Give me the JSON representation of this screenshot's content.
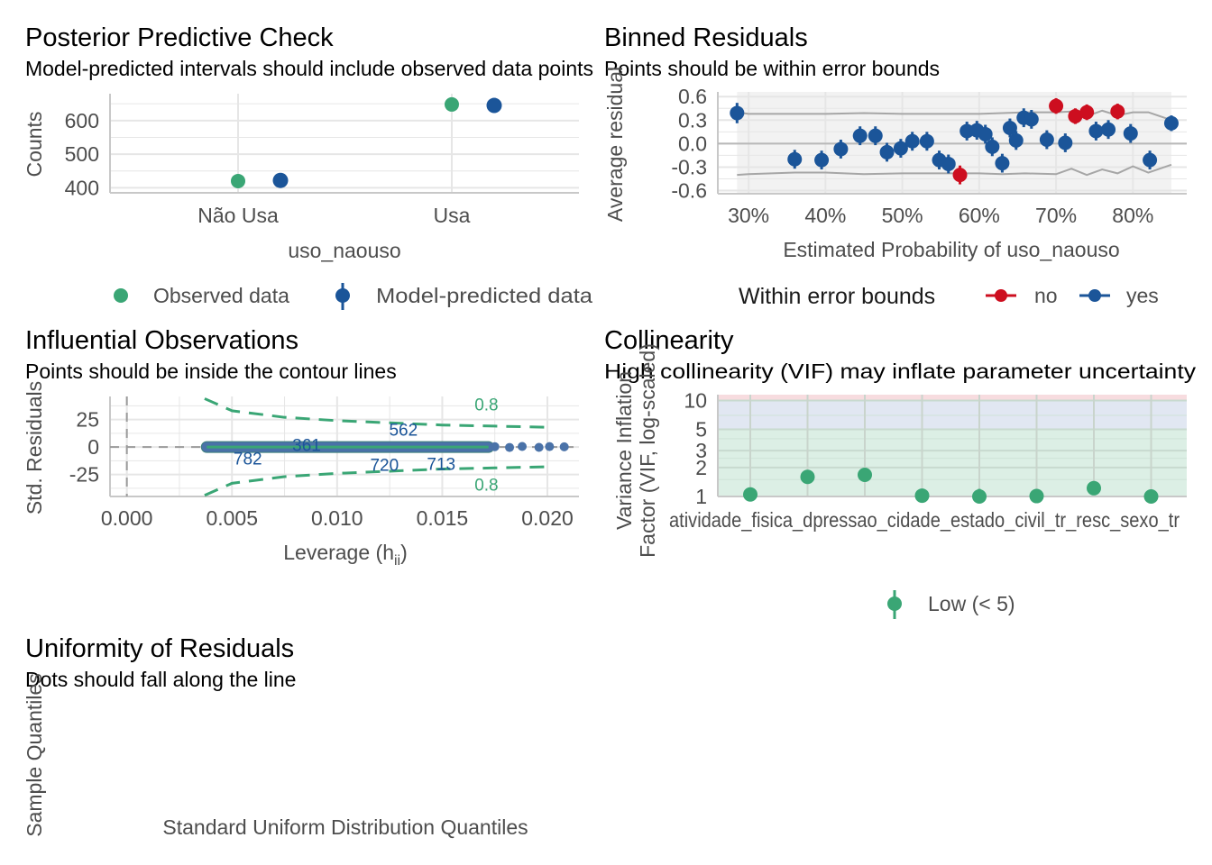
{
  "panels": {
    "ppc": {
      "title": "Posterior Predictive Check",
      "subtitle": "Model-predicted intervals should include observed data points",
      "xlabel": "uso_naouso",
      "ylabel": "Counts",
      "legend": {
        "observed": "Observed data",
        "predicted": "Model-predicted data"
      }
    },
    "binned": {
      "title": "Binned Residuals",
      "subtitle": "Points should be within error bounds",
      "xlabel": "Estimated Probability of uso_naouso",
      "ylabel": "Average residual",
      "legend": {
        "title": "Within error bounds",
        "no": "no",
        "yes": "yes"
      }
    },
    "influential": {
      "title": "Influential Observations",
      "subtitle": "Points should be inside the contour lines",
      "xlabel": "Leverage (h",
      "xlabel_sub": "ii",
      "xlabel_close": ")",
      "ylabel": "Std. Residuals",
      "contour_label": "0.8",
      "point_labels": [
        "562",
        "361",
        "782",
        "720",
        "713"
      ]
    },
    "collinearity": {
      "title": "Collinearity",
      "subtitle": "High collinearity (VIF) may inflate parameter uncertainty",
      "ylabel_line1": "Variance Inflation",
      "ylabel_line2": "Factor (VIF, log-scaled)",
      "xtick_text": "atividade_fisica_dpressao_cidade_estado_civil_tr_resc_sexo_tr",
      "legend": {
        "low": "Low (< 5)"
      }
    },
    "uniformity": {
      "title": "Uniformity of Residuals",
      "subtitle": "Dots should fall along the line",
      "xlabel": "Standard Uniform Distribution Quantiles",
      "ylabel": "Sample Quantiles"
    }
  },
  "colors": {
    "green": "#3aa675",
    "blue": "#1b5599",
    "red": "#cd0e1f",
    "grid": "#e6e6e6",
    "axis": "#c8c8c8"
  },
  "chart_data": [
    {
      "id": "ppc",
      "type": "scatter",
      "categories": [
        "Não Usa",
        "Usa"
      ],
      "ylim": [
        385,
        680
      ],
      "yticks": [
        400,
        500,
        600
      ],
      "series": [
        {
          "name": "Observed data",
          "values": [
            420,
            648
          ]
        },
        {
          "name": "Model-predicted data",
          "values": [
            422,
            645
          ],
          "lower": [
            407,
            632
          ],
          "upper": [
            437,
            660
          ]
        }
      ]
    },
    {
      "id": "binned",
      "type": "scatter",
      "xlim": [
        0.26,
        0.87
      ],
      "ylim": [
        -0.64,
        0.66
      ],
      "xticks": [
        0.3,
        0.4,
        0.5,
        0.6,
        0.7,
        0.8
      ],
      "xtick_labels": [
        "30%",
        "40%",
        "50%",
        "60%",
        "70%",
        "80%"
      ],
      "yticks": [
        -0.6,
        -0.3,
        0.0,
        0.3,
        0.6
      ],
      "ytick_labels": [
        "-0.6",
        "-0.3",
        "0.0",
        "0.3",
        "0.6"
      ],
      "points": [
        {
          "x": 0.285,
          "y": 0.39,
          "e": 0.13,
          "in": true
        },
        {
          "x": 0.36,
          "y": -0.2,
          "e": 0.12,
          "in": true
        },
        {
          "x": 0.395,
          "y": -0.21,
          "e": 0.12,
          "in": true
        },
        {
          "x": 0.42,
          "y": -0.07,
          "e": 0.12,
          "in": true
        },
        {
          "x": 0.445,
          "y": 0.1,
          "e": 0.12,
          "in": true
        },
        {
          "x": 0.465,
          "y": 0.1,
          "e": 0.12,
          "in": true
        },
        {
          "x": 0.48,
          "y": -0.11,
          "e": 0.12,
          "in": true
        },
        {
          "x": 0.498,
          "y": -0.06,
          "e": 0.12,
          "in": true
        },
        {
          "x": 0.513,
          "y": 0.03,
          "e": 0.12,
          "in": true
        },
        {
          "x": 0.532,
          "y": 0.03,
          "e": 0.12,
          "in": true
        },
        {
          "x": 0.548,
          "y": -0.21,
          "e": 0.12,
          "in": true
        },
        {
          "x": 0.56,
          "y": -0.26,
          "e": 0.12,
          "in": true
        },
        {
          "x": 0.575,
          "y": -0.4,
          "e": 0.12,
          "in": false
        },
        {
          "x": 0.584,
          "y": 0.16,
          "e": 0.12,
          "in": true
        },
        {
          "x": 0.597,
          "y": 0.17,
          "e": 0.12,
          "in": true
        },
        {
          "x": 0.608,
          "y": 0.12,
          "e": 0.12,
          "in": true
        },
        {
          "x": 0.617,
          "y": -0.04,
          "e": 0.12,
          "in": true
        },
        {
          "x": 0.63,
          "y": -0.25,
          "e": 0.12,
          "in": true
        },
        {
          "x": 0.64,
          "y": 0.2,
          "e": 0.12,
          "in": true
        },
        {
          "x": 0.648,
          "y": 0.04,
          "e": 0.12,
          "in": true
        },
        {
          "x": 0.658,
          "y": 0.33,
          "e": 0.12,
          "in": true
        },
        {
          "x": 0.668,
          "y": 0.31,
          "e": 0.12,
          "in": true
        },
        {
          "x": 0.688,
          "y": 0.05,
          "e": 0.12,
          "in": true
        },
        {
          "x": 0.7,
          "y": 0.48,
          "e": 0.1,
          "in": false
        },
        {
          "x": 0.712,
          "y": 0.01,
          "e": 0.12,
          "in": true
        },
        {
          "x": 0.725,
          "y": 0.35,
          "e": 0.1,
          "in": false
        },
        {
          "x": 0.74,
          "y": 0.4,
          "e": 0.1,
          "in": false
        },
        {
          "x": 0.752,
          "y": 0.16,
          "e": 0.12,
          "in": true
        },
        {
          "x": 0.768,
          "y": 0.18,
          "e": 0.12,
          "in": true
        },
        {
          "x": 0.78,
          "y": 0.41,
          "e": 0.1,
          "in": false
        },
        {
          "x": 0.797,
          "y": 0.13,
          "e": 0.12,
          "in": true
        },
        {
          "x": 0.822,
          "y": -0.21,
          "e": 0.12,
          "in": true
        },
        {
          "x": 0.85,
          "y": 0.26,
          "e": 0.1,
          "in": true
        }
      ],
      "bound_x": [
        0.285,
        0.3,
        0.36,
        0.4,
        0.45,
        0.5,
        0.55,
        0.6,
        0.63,
        0.66,
        0.7,
        0.72,
        0.74,
        0.76,
        0.78,
        0.8,
        0.82,
        0.85
      ],
      "bound_upper": [
        0.4,
        0.38,
        0.38,
        0.38,
        0.39,
        0.38,
        0.38,
        0.38,
        0.39,
        0.4,
        0.4,
        0.41,
        0.35,
        0.42,
        0.36,
        0.4,
        0.4,
        0.3
      ],
      "bound_lower": [
        -0.4,
        -0.39,
        -0.37,
        -0.37,
        -0.39,
        -0.38,
        -0.38,
        -0.38,
        -0.39,
        -0.38,
        -0.39,
        -0.32,
        -0.4,
        -0.33,
        -0.38,
        -0.29,
        -0.37,
        -0.27
      ]
    },
    {
      "id": "influential",
      "type": "scatter",
      "xlim": [
        -0.0008,
        0.0215
      ],
      "ylim": [
        -45,
        46
      ],
      "xticks": [
        0,
        0.005,
        0.01,
        0.015,
        0.02
      ],
      "xtick_labels": [
        "0.000",
        "0.005",
        "0.010",
        "0.015",
        "0.020"
      ],
      "yticks": [
        -25,
        0,
        25
      ],
      "ytick_labels": [
        "-25",
        "0",
        "25"
      ],
      "points_x": [
        0.0175,
        0.0182,
        0.0188,
        0.0196,
        0.0201,
        0.0208
      ],
      "points_y": [
        0.3,
        -0.4,
        0.5,
        -0.3,
        0.4,
        0.2
      ],
      "band_x": [
        0.0038,
        0.0172
      ],
      "contour_x": [
        0.0037,
        0.005,
        0.0075,
        0.01,
        0.0125,
        0.015,
        0.0175,
        0.02
      ],
      "contour_upper": [
        44,
        33,
        27,
        24,
        22,
        20,
        19,
        18
      ],
      "contour_lower": [
        -44,
        -33,
        -27,
        -24,
        -22,
        -20,
        -19,
        -18
      ],
      "labels": [
        {
          "text": "562",
          "x": 0.01315,
          "y": 16
        },
        {
          "text": "361",
          "x": 0.00855,
          "y": 2
        },
        {
          "text": "782",
          "x": 0.00575,
          "y": -10
        },
        {
          "text": "720",
          "x": 0.01225,
          "y": -16
        },
        {
          "text": "713",
          "x": 0.01495,
          "y": -15
        }
      ],
      "contour_label_pos": [
        [
          0.0171,
          39
        ],
        [
          0.0171,
          -34
        ]
      ]
    },
    {
      "id": "collinearity",
      "type": "scatter",
      "ylog": true,
      "ylim": [
        1,
        11.5
      ],
      "yticks": [
        1,
        2,
        3,
        5,
        10
      ],
      "ytick_labels": [
        "1",
        "2",
        "3",
        "5",
        "10"
      ],
      "n": 8,
      "values": [
        1.05,
        1.6,
        1.68,
        1.02,
        1.0,
        1.01,
        1.22,
        1.0
      ],
      "lower": [
        1.0,
        1.55,
        1.62,
        1.0,
        1.0,
        1.0,
        1.18,
        1.0
      ],
      "upper": [
        1.08,
        1.66,
        1.74,
        1.05,
        1.2,
        1.04,
        1.27,
        1.15
      ]
    }
  ]
}
